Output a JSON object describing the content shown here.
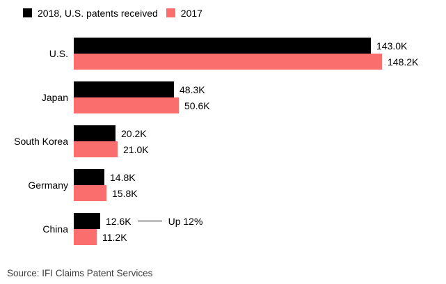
{
  "colors": {
    "bar_2018": "#000000",
    "bar_2017": "#FA6E6E",
    "label_text": "#000000",
    "source_text": "#3d3d3d",
    "background": "#ffffff"
  },
  "legend": [
    {
      "label": "2018, U.S. patents received",
      "color": "#000000"
    },
    {
      "label": "2017",
      "color": "#FA6E6E"
    }
  ],
  "chart_data": {
    "type": "bar",
    "orientation": "horizontal",
    "title": "",
    "xlabel": "",
    "ylabel": "",
    "grid": false,
    "legend_position": "top-left",
    "xlim": [
      0,
      148.2
    ],
    "unit": "thousands of patents",
    "categories": [
      "U.S.",
      "Japan",
      "South Korea",
      "Germany",
      "China"
    ],
    "series": [
      {
        "name": "2018, U.S. patents received",
        "color": "#000000",
        "values": [
          143.0,
          48.3,
          20.2,
          14.8,
          12.6
        ],
        "labels": [
          "143.0K",
          "48.3K",
          "20.2K",
          "14.8K",
          "12.6K"
        ]
      },
      {
        "name": "2017",
        "color": "#FA6E6E",
        "values": [
          148.2,
          50.6,
          21.0,
          15.8,
          11.2
        ],
        "labels": [
          "148.2K",
          "50.6K",
          "21.0K",
          "15.8K",
          "11.2K"
        ]
      }
    ],
    "annotation": {
      "category": "China",
      "series_index": 0,
      "text": "Up 12%"
    }
  },
  "source": "Source: IFI Claims Patent Services"
}
